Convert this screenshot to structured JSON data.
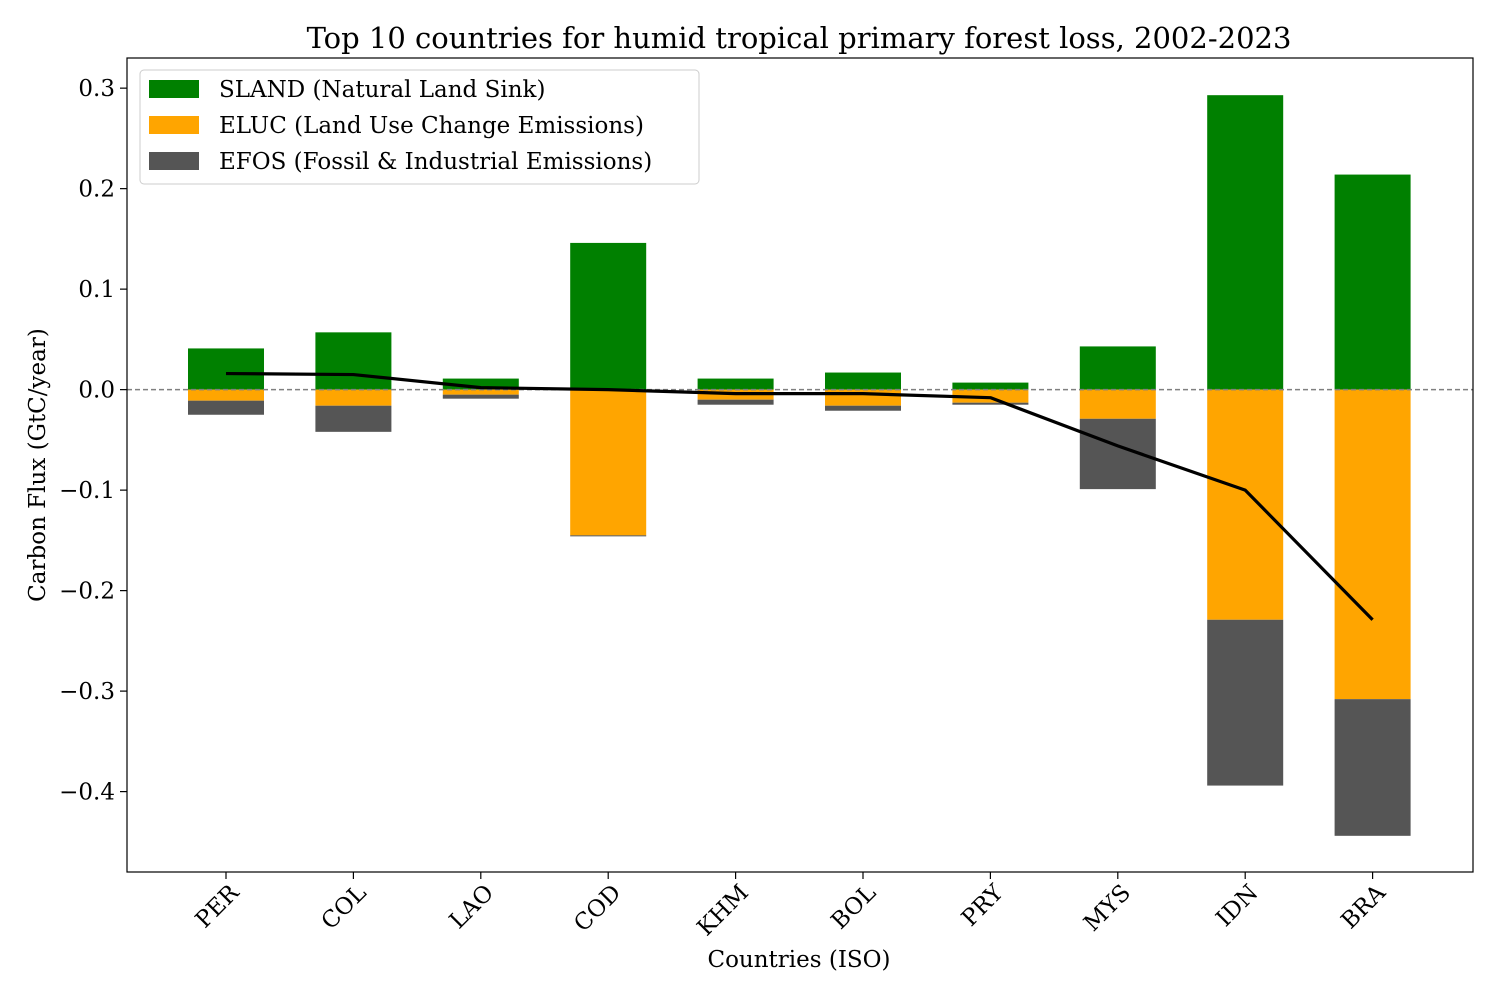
{
  "chart_data": {
    "type": "bar",
    "stacked": true,
    "title": "Top 10 countries for humid tropical primary forest loss, 2002-2023",
    "xlabel": "Countries (ISO)",
    "ylabel": "Carbon Flux (GtC/year)",
    "categories": [
      "PER",
      "COL",
      "LAO",
      "COD",
      "KHM",
      "BOL",
      "PRY",
      "MYS",
      "IDN",
      "BRA"
    ],
    "series": [
      {
        "name": "SLAND (Natural Land Sink)",
        "color": "#008000",
        "values": [
          0.041,
          0.057,
          0.011,
          0.146,
          0.011,
          0.017,
          0.007,
          0.043,
          0.293,
          0.214
        ]
      },
      {
        "name": "ELUC (Land Use Change Emissions)",
        "color": "#ffa500",
        "values": [
          -0.011,
          -0.016,
          -0.005,
          -0.145,
          -0.01,
          -0.016,
          -0.013,
          -0.029,
          -0.229,
          -0.308
        ]
      },
      {
        "name": "EFOS (Fossil & Industrial Emissions)",
        "color": "#555555",
        "values": [
          -0.014,
          -0.026,
          -0.004,
          -0.001,
          -0.005,
          -0.005,
          -0.002,
          -0.07,
          -0.165,
          -0.136
        ]
      }
    ],
    "line": {
      "color": "#000000",
      "values": [
        0.016,
        0.015,
        0.002,
        0.0,
        -0.004,
        -0.004,
        -0.008,
        -0.056,
        -0.1,
        -0.229
      ]
    },
    "zero_line": {
      "color": "#808080",
      "style": "dashed"
    },
    "ylim": [
      -0.48,
      0.33
    ],
    "yticks": [
      0.3,
      0.2,
      0.1,
      0.0,
      -0.1,
      -0.2,
      -0.3,
      -0.4
    ],
    "ytick_labels": [
      "0.3",
      "0.2",
      "0.1",
      "0.0",
      "−0.1",
      "−0.2",
      "−0.3",
      "−0.4"
    ],
    "grid": false,
    "legend_position": "top-left"
  }
}
